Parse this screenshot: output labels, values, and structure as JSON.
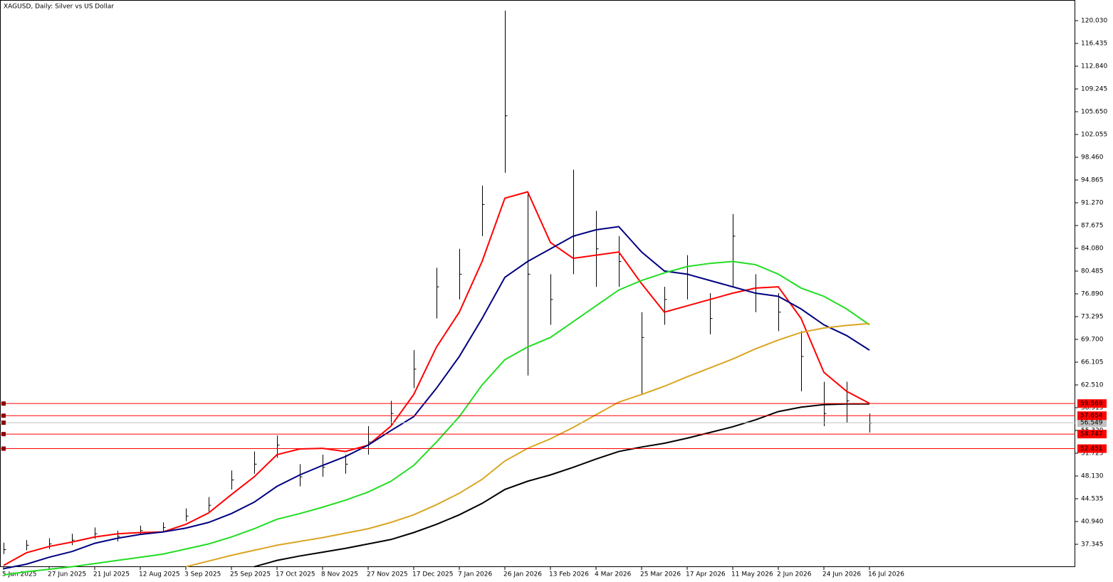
{
  "chart_data": {
    "type": "ohlc",
    "title": "XAGUSD, Daily:  Silver vs US Dollar",
    "x": [
      0,
      8,
      16,
      24,
      32,
      40,
      48,
      56,
      64,
      72,
      80,
      88,
      96,
      104,
      112,
      120,
      128,
      136,
      144,
      152,
      160,
      168,
      176,
      184,
      192,
      200,
      208,
      216,
      224,
      232,
      240,
      248,
      256,
      264,
      272,
      280,
      288,
      296,
      304
    ],
    "high": [
      37.6,
      38.0,
      38.3,
      39.0,
      40.0,
      39.5,
      40.3,
      40.8,
      43.0,
      44.8,
      49.0,
      52.0,
      54.5,
      50.0,
      51.5,
      51.5,
      56.0,
      60.0,
      68.0,
      81.0,
      84.0,
      94.0,
      121.6,
      93.0,
      80.0,
      96.5,
      90.0,
      86.0,
      74.0,
      78.0,
      83.0,
      77.0,
      89.5,
      80.0,
      77.0,
      71.0,
      63.0,
      63.0,
      58.0
    ],
    "low": [
      35.8,
      36.4,
      36.6,
      37.2,
      38.2,
      37.8,
      38.8,
      39.2,
      41.0,
      42.5,
      46.0,
      48.5,
      51.0,
      46.5,
      48.0,
      48.5,
      51.5,
      56.0,
      62.0,
      73.0,
      76.0,
      86.0,
      96.0,
      64.0,
      72.0,
      80.0,
      78.0,
      78.0,
      61.0,
      72.0,
      76.0,
      70.5,
      78.0,
      74.0,
      71.0,
      61.5,
      56.0,
      56.5,
      55.0
    ],
    "close": [
      36.5,
      37.2,
      37.4,
      38.0,
      39.0,
      38.6,
      39.5,
      40.0,
      41.8,
      43.5,
      47.5,
      50.0,
      53.0,
      48.0,
      49.5,
      50.0,
      53.5,
      58.0,
      65.0,
      78.0,
      80.0,
      91.0,
      105.0,
      80.0,
      76.0,
      86.0,
      84.0,
      82.0,
      70.0,
      76.0,
      80.0,
      73.0,
      86.0,
      77.0,
      74.0,
      67.0,
      58.0,
      60.0,
      56.5
    ],
    "series": [
      {
        "color": "#ff0000",
        "values": [
          34,
          36,
          37.0,
          37.7,
          38.5,
          39.0,
          39.2,
          39.3,
          40.5,
          42.3,
          45.2,
          48.0,
          51.5,
          52.4,
          52.5,
          52.0,
          53.0,
          56.0,
          61.0,
          68.5,
          74.0,
          82.0,
          92.0,
          93.0,
          85.0,
          82.5,
          83.0,
          83.5,
          78.5,
          74.0,
          75.0,
          76.0,
          77.0,
          77.8,
          78.0,
          73.0,
          64.5,
          61.5,
          59.6
        ]
      },
      {
        "color": "#000080",
        "values": [
          33.5,
          34.2,
          35.3,
          36.2,
          37.5,
          38.3,
          38.9,
          39.3,
          39.9,
          40.8,
          42.2,
          44.0,
          46.5,
          48.3,
          49.8,
          51.2,
          53.0,
          55.3,
          57.5,
          62.0,
          67.0,
          73.0,
          79.5,
          82.0,
          84.0,
          86.0,
          87.0,
          87.5,
          83.5,
          80.5,
          80.0,
          79.0,
          78.0,
          77.0,
          76.5,
          74.5,
          72.0,
          70.3,
          68.0
        ]
      },
      {
        "color": "#22dd22",
        "values": [
          32.5,
          33.0,
          33.4,
          33.8,
          34.3,
          34.8,
          35.3,
          35.8,
          36.6,
          37.4,
          38.5,
          39.8,
          41.3,
          42.2,
          43.2,
          44.3,
          45.6,
          47.3,
          49.8,
          53.5,
          57.5,
          62.5,
          66.5,
          68.5,
          70.0,
          72.5,
          75.0,
          77.5,
          79.0,
          80.2,
          81.2,
          81.7,
          82.0,
          81.5,
          80.0,
          77.8,
          76.5,
          74.5,
          72.0
        ]
      },
      {
        "color": "#daa520",
        "values": [
          null,
          null,
          null,
          null,
          null,
          null,
          null,
          null,
          33.8,
          34.7,
          35.6,
          36.4,
          37.2,
          37.8,
          38.4,
          39.1,
          39.8,
          40.8,
          42.0,
          43.6,
          45.4,
          47.6,
          50.5,
          52.5,
          54.0,
          55.8,
          57.8,
          59.8,
          61.0,
          62.3,
          63.8,
          65.2,
          66.6,
          68.2,
          69.6,
          70.8,
          71.5,
          71.9,
          72.2
        ]
      },
      {
        "color": "#000000",
        "values": [
          null,
          null,
          null,
          null,
          null,
          null,
          null,
          null,
          null,
          null,
          null,
          33.8,
          34.8,
          35.5,
          36.1,
          36.7,
          37.4,
          38.1,
          39.2,
          40.5,
          42.0,
          43.8,
          46.0,
          47.3,
          48.3,
          49.5,
          50.8,
          52.0,
          52.7,
          53.3,
          54.1,
          55.0,
          55.9,
          57.0,
          58.3,
          59.0,
          59.4,
          59.5,
          59.5
        ]
      }
    ],
    "levels": [
      59.569,
      57.654,
      54.747,
      52.451
    ],
    "level_color": "#ff0000",
    "current_price": 56.549,
    "xlim": [
      -1.25,
      376.25
    ],
    "xticks": [
      {
        "value": 0,
        "label": "5 Jun 2025"
      },
      {
        "value": 16,
        "label": "27 Jun 2025"
      },
      {
        "value": 32,
        "label": "21 Jul 2025"
      },
      {
        "value": 48,
        "label": "12 Aug 2025"
      },
      {
        "value": 64,
        "label": "3 Sep 2025"
      },
      {
        "value": 80,
        "label": "25 Sep 2025"
      },
      {
        "value": 96,
        "label": "17 Oct 2025"
      },
      {
        "value": 112,
        "label": "8 Nov 2025"
      },
      {
        "value": 128,
        "label": "27 Nov 2025"
      },
      {
        "value": 144,
        "label": "17 Dec 2025"
      },
      {
        "value": 160,
        "label": "7 Jan 2026"
      },
      {
        "value": 176,
        "label": "26 Jan 2026"
      },
      {
        "value": 192,
        "label": "13 Feb 2026"
      },
      {
        "value": 208,
        "label": "4 Mar 2026"
      },
      {
        "value": 224,
        "label": "25 Mar 2026"
      },
      {
        "value": 240,
        "label": "17 Apr 2026"
      },
      {
        "value": 256,
        "label": "11 May 2026"
      },
      {
        "value": 272,
        "label": "2 Jun 2026"
      },
      {
        "value": 288,
        "label": "24 Jun 2026"
      },
      {
        "value": 304,
        "label": "16 Jul 2026"
      }
    ],
    "ylim": [
      33.75,
      123.29
    ],
    "yticks": [
      {
        "value": 120.03,
        "label": "120.030"
      },
      116.435,
      {
        "value": 112.84,
        "label": "112.840"
      },
      109.245,
      {
        "value": 105.65,
        "label": "105.650"
      },
      102.055,
      {
        "value": 98.46,
        "label": "98.460"
      },
      94.865,
      {
        "value": 91.27,
        "label": "91.270"
      },
      87.675,
      {
        "value": 84.08,
        "label": "84.080"
      },
      80.485,
      {
        "value": 76.89,
        "label": "76.890"
      },
      73.295,
      {
        "value": 69.7,
        "label": "69.700"
      },
      66.105,
      {
        "value": 62.51,
        "label": "62.510"
      },
      58.915,
      {
        "value": 55.32,
        "label": "55.320"
      },
      51.725,
      {
        "value": 48.13,
        "label": "48.130"
      },
      44.535,
      {
        "value": 40.94,
        "label": "40.940"
      },
      37.345
    ]
  }
}
